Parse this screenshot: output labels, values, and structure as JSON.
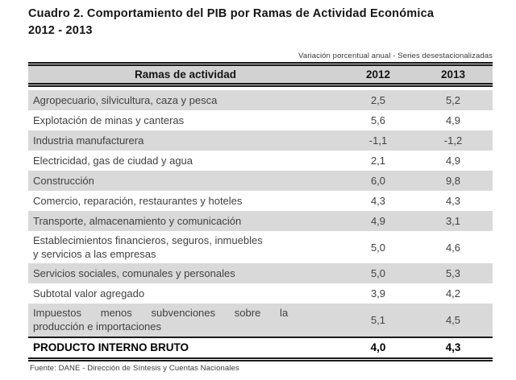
{
  "title": "Cuadro 2. Comportamiento del PIB por Ramas de Actividad Económica\n2012 - 2013",
  "table": {
    "note": "Variación porcentual anual - Series desestacionalizadas",
    "headers": {
      "rama": "Ramas de actividad",
      "y2012": "2012",
      "y2013": "2013"
    },
    "rows": [
      {
        "label": "Agropecuario, silvicultura, caza y pesca",
        "v2012": "2,5",
        "v2013": "5,2",
        "shaded": true
      },
      {
        "label": "Explotación de minas y canteras",
        "v2012": "5,6",
        "v2013": "4,9",
        "shaded": false
      },
      {
        "label": "Industria manufacturera",
        "v2012": "-1,1",
        "v2013": "-1,2",
        "shaded": true
      },
      {
        "label": "Electricidad, gas de ciudad y agua",
        "v2012": "2,1",
        "v2013": "4,9",
        "shaded": false
      },
      {
        "label": "Construcción",
        "v2012": "6,0",
        "v2013": "9,8",
        "shaded": true
      },
      {
        "label": "Comercio, reparación, restaurantes y hoteles",
        "v2012": "4,3",
        "v2013": "4,3",
        "shaded": false
      },
      {
        "label": "Transporte, almacenamiento y comunicación",
        "v2012": "4,9",
        "v2013": "3,1",
        "shaded": true
      },
      {
        "label": "Establecimientos financieros, seguros, inmuebles\ny servicios a las empresas",
        "v2012": "5,0",
        "v2013": "4,6",
        "shaded": false
      },
      {
        "label": "Servicios sociales, comunales y personales",
        "v2012": "5,0",
        "v2013": "5,3",
        "shaded": true
      },
      {
        "label": "Subtotal valor agregado",
        "v2012": "3,9",
        "v2013": "4,2",
        "shaded": false
      },
      {
        "label": "Impuestos menos subvenciones sobre la\nproducción e importaciones",
        "v2012": "5,1",
        "v2013": "4,5",
        "shaded": true,
        "spread": true
      },
      {
        "label": "PRODUCTO INTERNO BRUTO",
        "v2012": "4,0",
        "v2013": "4,3",
        "shaded": false,
        "total": true
      }
    ]
  },
  "footer": {
    "source": "Fuente: DANE - Dirección de Síntesis y Cuentas Nacionales"
  },
  "colors": {
    "row_shade": "#d9d9d9",
    "header_shade": "#d2d2d2",
    "rule": "#1a1a1a",
    "text_body": "#414141",
    "text_strong": "#141414"
  },
  "chart_data": {
    "type": "table",
    "title": "Cuadro 2. Comportamiento del PIB por Ramas de Actividad Económica 2012 - 2013",
    "note": "Variación porcentual anual - Series desestacionalizadas",
    "columns": [
      "Ramas de actividad",
      "2012",
      "2013"
    ],
    "rows": [
      [
        "Agropecuario, silvicultura, caza y pesca",
        2.5,
        5.2
      ],
      [
        "Explotación de minas y canteras",
        5.6,
        4.9
      ],
      [
        "Industria manufacturera",
        -1.1,
        -1.2
      ],
      [
        "Electricidad, gas de ciudad y agua",
        2.1,
        4.9
      ],
      [
        "Construcción",
        6.0,
        9.8
      ],
      [
        "Comercio, reparación, restaurantes y hoteles",
        4.3,
        4.3
      ],
      [
        "Transporte, almacenamiento y comunicación",
        4.9,
        3.1
      ],
      [
        "Establecimientos financieros, seguros, inmuebles y servicios a las empresas",
        5.0,
        4.6
      ],
      [
        "Servicios sociales, comunales y personales",
        5.0,
        5.3
      ],
      [
        "Subtotal valor agregado",
        3.9,
        4.2
      ],
      [
        "Impuestos menos subvenciones sobre la producción e importaciones",
        5.1,
        4.5
      ],
      [
        "PRODUCTO INTERNO BRUTO",
        4.0,
        4.3
      ]
    ],
    "source": "Fuente: DANE - Dirección de Síntesis y Cuentas Nacionales"
  }
}
